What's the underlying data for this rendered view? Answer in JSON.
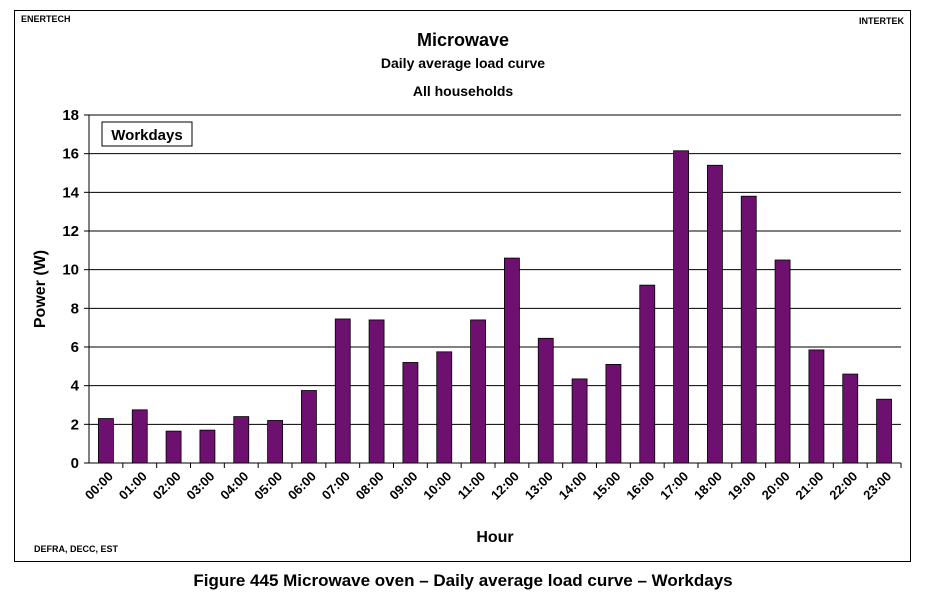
{
  "corner_left": "ENERTECH",
  "corner_right": "INTERTEK",
  "source": "DEFRA, DECC, EST",
  "caption": "Figure 445 Microwave oven – Daily average load curve – Workdays",
  "colors": {
    "bar": "#6e1070",
    "grid": "#000000"
  },
  "chart_data": {
    "type": "bar",
    "title": "Microwave",
    "subtitle": [
      "Daily average load curve",
      "All households"
    ],
    "xlabel": "Hour",
    "ylabel": "Power (W)",
    "ylim": [
      0,
      18
    ],
    "yticks": [
      0,
      2,
      4,
      6,
      8,
      10,
      12,
      14,
      16,
      18
    ],
    "grid": true,
    "legend": "Workdays",
    "categories": [
      "00:00",
      "01:00",
      "02:00",
      "03:00",
      "04:00",
      "05:00",
      "06:00",
      "07:00",
      "08:00",
      "09:00",
      "10:00",
      "11:00",
      "12:00",
      "13:00",
      "14:00",
      "15:00",
      "16:00",
      "17:00",
      "18:00",
      "19:00",
      "20:00",
      "21:00",
      "22:00",
      "23:00"
    ],
    "values": [
      2.3,
      2.75,
      1.65,
      1.7,
      2.4,
      2.2,
      3.75,
      7.45,
      7.4,
      5.2,
      5.75,
      7.4,
      10.6,
      6.45,
      4.35,
      5.1,
      9.2,
      16.15,
      15.4,
      13.8,
      10.5,
      5.85,
      4.6,
      3.3
    ]
  }
}
